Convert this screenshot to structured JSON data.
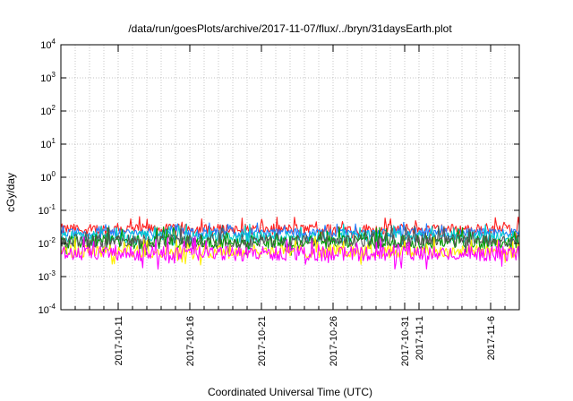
{
  "chart_data": {
    "type": "line",
    "title": "/data/run/goesPlots/archive/2017-11-07/flux/../bryn/31daysEarth.plot",
    "xlabel": "Coordinated Universal Time (UTC)",
    "ylabel": "cGy/day",
    "y_scale": "log",
    "ylim": [
      0.0001,
      10000
    ],
    "xlim": [
      "2017-10-07",
      "2017-11-08"
    ],
    "grid": true,
    "legend": "none",
    "y_ticks": [
      {
        "base": "10",
        "exp": "-4"
      },
      {
        "base": "10",
        "exp": "-3"
      },
      {
        "base": "10",
        "exp": "-2"
      },
      {
        "base": "10",
        "exp": "-1"
      },
      {
        "base": "10",
        "exp": "0"
      },
      {
        "base": "10",
        "exp": "1"
      },
      {
        "base": "10",
        "exp": "2"
      },
      {
        "base": "10",
        "exp": "3"
      },
      {
        "base": "10",
        "exp": "4"
      }
    ],
    "x_ticks": [
      {
        "date": "2017-10-11",
        "label": "2017-10-11"
      },
      {
        "date": "2017-10-16",
        "label": "2017-10-16"
      },
      {
        "date": "2017-10-21",
        "label": "2017-10-21"
      },
      {
        "date": "2017-10-26",
        "label": "2017-10-26"
      },
      {
        "date": "2017-10-31",
        "label": "2017-10-31"
      },
      {
        "date": "2017-11-01",
        "label": "2017-11-1"
      },
      {
        "date": "2017-11-06",
        "label": "2017-11-6"
      }
    ],
    "series": [
      {
        "color": "#ff2020",
        "level": 0.027,
        "spread": 0.16
      },
      {
        "color": "#2080ff",
        "level": 0.021,
        "spread": 0.14
      },
      {
        "color": "#00cccc",
        "level": 0.016,
        "spread": 0.18
      },
      {
        "color": "#009900",
        "level": 0.011,
        "spread": 0.2
      },
      {
        "color": "#555555",
        "level": 0.012,
        "spread": 0.2
      },
      {
        "color": "#ffee00",
        "level": 0.0058,
        "spread": 0.2
      },
      {
        "color": "#ff00ff",
        "level": 0.0049,
        "spread": 0.22
      }
    ]
  }
}
